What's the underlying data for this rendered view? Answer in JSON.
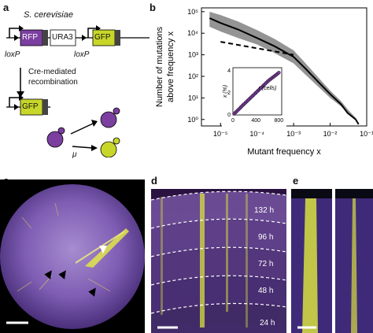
{
  "panels": {
    "a": {
      "letter": "a",
      "species": "S. cerevisiae",
      "cassette": {
        "rfp": "RFP",
        "ura3": "URA3",
        "gfp": "GFP",
        "term": "TERM"
      },
      "loxp_left": "loxP",
      "loxp_right": "loxP",
      "process_line1": "Cre-mediated",
      "process_line2": "recombination",
      "rate_symbol": "μ",
      "colors": {
        "rfp": "#7b3fa0",
        "gfp": "#c8d62a",
        "ura3": "#ffffff",
        "purple_cell": "#7b3fa0",
        "yellow_cell": "#c8d62a"
      }
    },
    "b": {
      "letter": "b",
      "chart_data": [
        {
          "type": "line",
          "xlabel": "Mutant frequency x",
          "ylabel_line1": "Number of mutations",
          "ylabel_line2": "above frequency x",
          "x_scale": "log",
          "y_scale": "log",
          "xlim": [
            3e-06,
            0.1
          ],
          "ylim": [
            0.5,
            150000
          ],
          "x_ticks": [
            "10⁻⁵",
            "10⁻⁴",
            "10⁻³",
            "10⁻²",
            "10⁻¹"
          ],
          "x_tick_values": [
            1e-05,
            0.0001,
            0.001,
            0.01,
            0.1
          ],
          "y_ticks": [
            "10⁰",
            "10¹",
            "10²",
            "10³",
            "10⁴",
            "10⁵"
          ],
          "y_tick_values": [
            1,
            10,
            100,
            1000,
            10000,
            100000
          ],
          "series": [
            {
              "style": "solid-with-band",
              "color": "#000000",
              "band_color": "#888888",
              "x": [
                5e-06,
                1e-05,
                3e-05,
                0.0001,
                0.0003,
                0.001,
                0.002,
                0.005,
                0.01,
                0.02,
                0.03,
                0.05,
                0.06
              ],
              "y": [
                50000,
                30000,
                15000,
                6000,
                2500,
                800,
                250,
                50,
                15,
                5,
                2,
                1,
                0.6
              ],
              "y_low": [
                20000,
                12000,
                6000,
                3000,
                1200,
                400,
                130,
                30,
                10,
                4,
                2,
                1,
                0.6
              ],
              "y_high": [
                100000,
                70000,
                35000,
                14000,
                5500,
                1600,
                450,
                80,
                22,
                7,
                3,
                1.2,
                0.6
              ]
            },
            {
              "style": "dashed",
              "color": "#000000",
              "x": [
                1e-05,
                0.001
              ],
              "y": [
                4000,
                1000
              ]
            }
          ]
        },
        {
          "type": "scatter",
          "xlabel": "r (cells)",
          "ylabel": "x (%)",
          "xlim": [
            0,
            850
          ],
          "ylim": [
            0,
            4.3
          ],
          "x_ticks": [
            "0",
            "400",
            "800"
          ],
          "x_tick_values": [
            0,
            400,
            800
          ],
          "y_ticks": [
            "0",
            "2",
            "4"
          ],
          "y_tick_values": [
            0,
            2,
            4
          ],
          "marker_color": "#7b3fa0",
          "x": [
            20,
            40,
            60,
            80,
            100,
            120,
            140,
            160,
            180,
            200,
            220,
            240,
            260,
            280,
            300,
            320,
            340,
            360,
            380,
            400,
            420,
            440,
            460,
            480,
            500,
            520,
            540,
            560,
            580,
            600,
            620,
            640,
            660,
            680,
            700,
            720,
            740,
            760,
            780,
            800
          ],
          "y": [
            0.1,
            0.2,
            0.3,
            0.4,
            0.5,
            0.6,
            0.72,
            0.82,
            0.92,
            1.02,
            1.12,
            1.22,
            1.32,
            1.42,
            1.52,
            1.62,
            1.72,
            1.82,
            1.92,
            2.02,
            2.12,
            2.22,
            2.32,
            2.42,
            2.52,
            2.62,
            2.72,
            2.82,
            2.92,
            3.02,
            3.12,
            3.2,
            3.28,
            3.36,
            3.44,
            3.52,
            3.6,
            3.68,
            3.76,
            3.85
          ]
        }
      ]
    },
    "c": {
      "letter": "c"
    },
    "d": {
      "letter": "d",
      "times": [
        "132 h",
        "96 h",
        "72 h",
        "48 h",
        "24 h"
      ]
    },
    "e": {
      "letter": "e"
    }
  }
}
